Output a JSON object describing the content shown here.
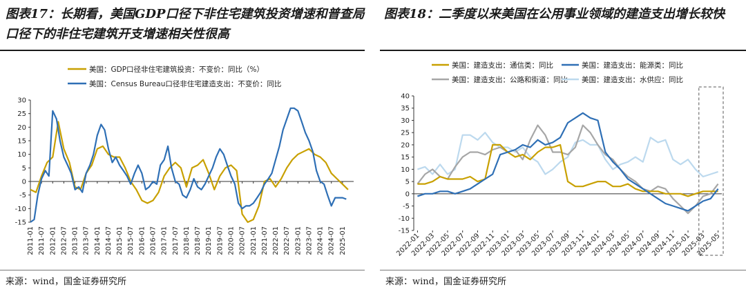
{
  "titles": {
    "left": "图表17：长期看，美国GDP口径下非住宅建筑投资增速和普查局口径下的非住宅建筑开支增速相关性很高",
    "right": "图表18：二季度以来美国在公用事业领域的建造支出增长较快"
  },
  "sources": {
    "left": "来源：wind，国金证券研究所",
    "right": "来源：wind，国金证券研究所"
  },
  "chart_data": [
    {
      "type": "line",
      "ylim": [
        -15,
        30
      ],
      "yticks": [
        -15,
        -10,
        -5,
        0,
        5,
        10,
        15,
        20,
        25,
        30
      ],
      "xticks": [
        "2011-01",
        "2011-07",
        "2012-01",
        "2012-07",
        "2013-01",
        "2013-07",
        "2014-01",
        "2014-07",
        "2015-01",
        "2015-07",
        "2016-01",
        "2016-07",
        "2017-01",
        "2017-07",
        "2018-01",
        "2018-07",
        "2019-01",
        "2019-07",
        "2020-01",
        "2020-07",
        "2021-01",
        "2021-07",
        "2022-01",
        "2022-07",
        "2023-01",
        "2023-07",
        "2024-01",
        "2024-07",
        "2025-01"
      ],
      "series": [
        {
          "name": "美国：GDP口径非住宅建筑投资：不变价：同比（%）",
          "color": "#c8a000",
          "x": [
            2011.0,
            2011.25,
            2011.5,
            2011.75,
            2012.0,
            2012.25,
            2012.5,
            2012.75,
            2013.0,
            2013.25,
            2013.5,
            2013.75,
            2014.0,
            2014.25,
            2014.5,
            2014.75,
            2015.0,
            2015.25,
            2015.5,
            2015.75,
            2016.0,
            2016.25,
            2016.5,
            2016.75,
            2017.0,
            2017.25,
            2017.5,
            2017.75,
            2018.0,
            2018.25,
            2018.5,
            2018.75,
            2019.0,
            2019.25,
            2019.5,
            2019.75,
            2020.0,
            2020.25,
            2020.5,
            2020.75,
            2021.0,
            2021.25,
            2021.5,
            2021.75,
            2022.0,
            2022.25,
            2022.5,
            2022.75,
            2023.0,
            2023.25,
            2023.5,
            2023.75,
            2024.0,
            2024.25,
            2024.5,
            2024.75,
            2025.0,
            2025.25
          ],
          "y": [
            -3,
            -4,
            2,
            7,
            9,
            22,
            12,
            7,
            -2,
            -3,
            3,
            6,
            12,
            13,
            10,
            9,
            9,
            5,
            0,
            -3,
            -7,
            -8,
            -7,
            -4,
            2,
            5,
            7,
            5,
            -2,
            5,
            6,
            8,
            3,
            -3,
            2,
            5,
            6,
            4,
            -12,
            -15,
            -14,
            -9,
            0,
            1,
            -2,
            1,
            5,
            8,
            10,
            11,
            12,
            10,
            9,
            7,
            3,
            1,
            -1,
            -3
          ]
        },
        {
          "name": "美国：Census Bureau口径非住宅建造支出：不变价：同比",
          "color": "#2e6fb5",
          "x": [
            2011.0,
            2011.17,
            2011.33,
            2011.5,
            2011.67,
            2011.83,
            2012.0,
            2012.17,
            2012.33,
            2012.5,
            2012.67,
            2012.83,
            2013.0,
            2013.17,
            2013.33,
            2013.5,
            2013.67,
            2013.83,
            2014.0,
            2014.17,
            2014.33,
            2014.5,
            2014.67,
            2014.83,
            2015.0,
            2015.17,
            2015.33,
            2015.5,
            2015.67,
            2015.83,
            2016.0,
            2016.17,
            2016.33,
            2016.5,
            2016.67,
            2016.83,
            2017.0,
            2017.17,
            2017.33,
            2017.5,
            2017.67,
            2017.83,
            2018.0,
            2018.17,
            2018.33,
            2018.5,
            2018.67,
            2018.83,
            2019.0,
            2019.17,
            2019.33,
            2019.5,
            2019.67,
            2019.83,
            2020.0,
            2020.17,
            2020.33,
            2020.5,
            2020.67,
            2020.83,
            2021.0,
            2021.17,
            2021.33,
            2021.5,
            2021.67,
            2021.83,
            2022.0,
            2022.17,
            2022.33,
            2022.5,
            2022.67,
            2022.83,
            2023.0,
            2023.17,
            2023.33,
            2023.5,
            2023.67,
            2023.83,
            2024.0,
            2024.17,
            2024.33,
            2024.5,
            2024.67,
            2024.83,
            2025.0,
            2025.17
          ],
          "y": [
            -15,
            -14,
            -5,
            1,
            4,
            2,
            26,
            23,
            15,
            9,
            6,
            3,
            -3,
            -2,
            -4,
            3,
            6,
            10,
            17,
            21,
            19,
            12,
            7,
            9,
            6,
            4,
            2,
            -1,
            3,
            6,
            3,
            -3,
            -2,
            0,
            -1,
            6,
            8,
            13,
            5,
            0,
            -1,
            -5,
            -6,
            -3,
            1,
            -2,
            -3,
            -1,
            2,
            5,
            9,
            12,
            10,
            6,
            2,
            -1,
            -8,
            -10,
            -9,
            -9,
            -8,
            -6,
            -4,
            -1,
            1,
            3,
            8,
            13,
            19,
            23,
            27,
            27,
            26,
            22,
            18,
            15,
            11,
            4,
            0,
            -1,
            -5,
            -9,
            -6,
            -6,
            -6,
            -6.5
          ]
        }
      ]
    },
    {
      "type": "line",
      "ylim": [
        -15,
        40
      ],
      "yticks": [
        -15,
        -10,
        -5,
        0,
        5,
        10,
        15,
        20,
        25,
        30,
        35,
        40
      ],
      "xticks": [
        "2022-01",
        "2022-03",
        "2022-05",
        "2022-07",
        "2022-09",
        "2022-11",
        "2023-01",
        "2023-03",
        "2023-05",
        "2023-07",
        "2023-09",
        "2023-11",
        "2024-01",
        "2024-03",
        "2024-05",
        "2024-07",
        "2024-09",
        "2024-11",
        "2025-01",
        "2025-03",
        "2025-05"
      ],
      "series": [
        {
          "name": "美国：建造支出：通信类：同比",
          "color": "#c8a000",
          "y": [
            4,
            4,
            5,
            7,
            6,
            6,
            6,
            7,
            5,
            6,
            20,
            20,
            17,
            15,
            16,
            14,
            17,
            19,
            19,
            20,
            5,
            3,
            3,
            4,
            5,
            5,
            3,
            3,
            4,
            2,
            1,
            1,
            1,
            0,
            0,
            0,
            -1,
            0,
            1,
            1,
            1
          ]
        },
        {
          "name": "美国：建造支出：能源类：同比",
          "color": "#2e6fb5",
          "y": [
            -1,
            0,
            0,
            1,
            1,
            0,
            1,
            2,
            4,
            6,
            8,
            16,
            17,
            18,
            20,
            19,
            22,
            20,
            21,
            23,
            29,
            31,
            33,
            31,
            30,
            17,
            13,
            10,
            6,
            4,
            2,
            0,
            -2,
            -4,
            -5,
            -6,
            -7,
            -5,
            -3,
            -2,
            2
          ]
        },
        {
          "name": "美国：建造支出：公路和街道：同比",
          "color": "#a6a6a6",
          "y": [
            4,
            8,
            10,
            7,
            6,
            11,
            15,
            17,
            17,
            16,
            18,
            19,
            17,
            18,
            14,
            22,
            28,
            24,
            17,
            17,
            16,
            19,
            28,
            25,
            20,
            16,
            14,
            10,
            7,
            5,
            2,
            1,
            3,
            2,
            -2,
            -5,
            -8,
            -5,
            -1,
            0,
            4
          ]
        },
        {
          "name": "美国：建造支出：水供应：同比",
          "color": "#bcd9ee",
          "y": [
            10,
            11,
            8,
            12,
            8,
            10,
            24,
            24,
            22,
            25,
            21,
            19,
            19,
            17,
            19,
            15,
            13,
            8,
            10,
            13,
            15,
            21,
            22,
            20,
            20,
            14,
            10,
            12,
            13,
            15,
            13,
            23,
            21,
            22,
            14,
            12,
            14,
            10,
            7,
            8,
            9
          ]
        }
      ],
      "highlight": "2025-04 — 2025-06 (dashed box)"
    }
  ]
}
